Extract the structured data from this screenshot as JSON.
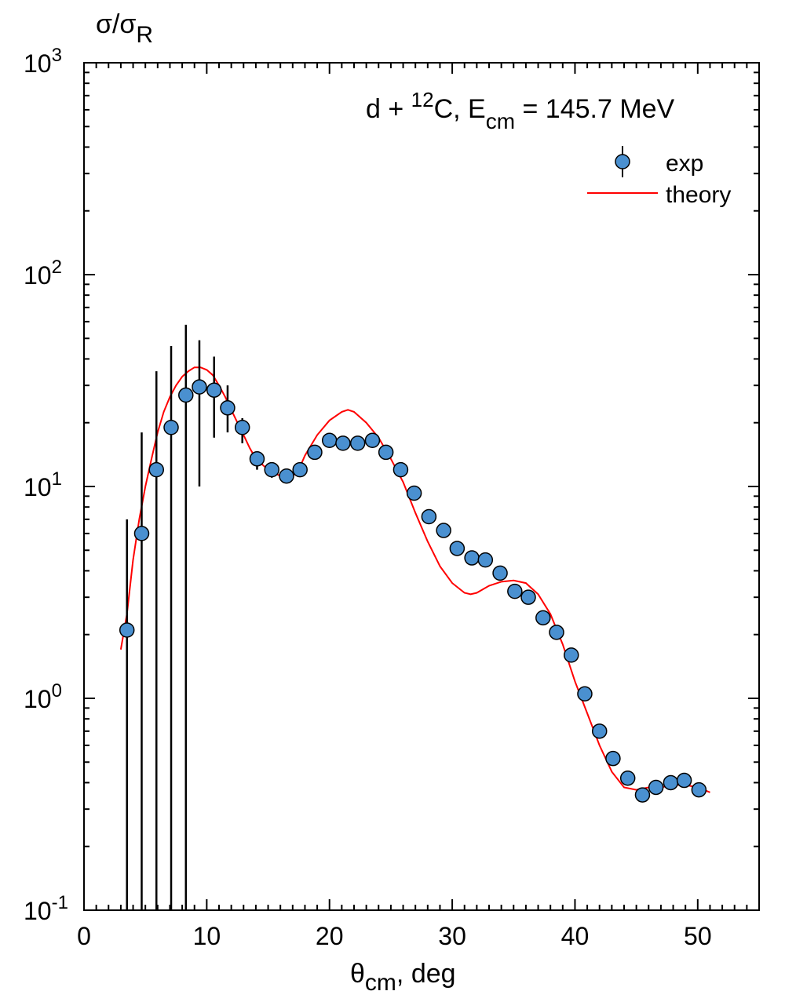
{
  "chart_data": {
    "type": "scatter",
    "title": {
      "reaction_prefix": "d + ",
      "mass_number": "12",
      "nucleus": "C, E",
      "energy_subscript": "cm",
      "energy_value": " = 145.7 MeV"
    },
    "ylabel": {
      "main": "σ/σ",
      "subscript": "R"
    },
    "xlabel": {
      "main": "θ",
      "subscript": "cm",
      "suffix": ", deg"
    },
    "xlim": [
      0,
      55
    ],
    "ylim": [
      0.1,
      1000
    ],
    "yscale": "log",
    "x_ticks": [
      "0",
      "10",
      "20",
      "30",
      "40",
      "50"
    ],
    "y_ticks": [
      {
        "base": "10",
        "exp": "-1"
      },
      {
        "base": "10",
        "exp": "0"
      },
      {
        "base": "10",
        "exp": "1"
      },
      {
        "base": "10",
        "exp": "2"
      },
      {
        "base": "10",
        "exp": "3"
      }
    ],
    "grid": false,
    "legend_position": "top-right",
    "legend": {
      "exp": "exp",
      "theory": "theory"
    },
    "colors": {
      "exp_fill": "#4a90d0",
      "exp_edge": "#000000",
      "theory": "#ff0000",
      "axis": "#000000"
    },
    "series": [
      {
        "name": "exp",
        "type": "scatter_with_errorbars",
        "x": [
          3.5,
          4.7,
          5.9,
          7.1,
          8.3,
          9.4,
          10.6,
          11.7,
          12.9,
          14.1,
          15.3,
          16.5,
          17.6,
          18.8,
          20.0,
          21.1,
          22.3,
          23.5,
          24.6,
          25.8,
          26.9,
          28.1,
          29.3,
          30.4,
          31.6,
          32.7,
          33.9,
          35.1,
          36.2,
          37.4,
          38.5,
          39.7,
          40.8,
          42.0,
          43.1,
          44.3,
          45.5,
          46.6,
          47.8,
          48.9,
          50.1
        ],
        "y": [
          2.1,
          6.0,
          12.0,
          19.0,
          27.0,
          29.5,
          28.5,
          23.5,
          19.0,
          13.5,
          12.0,
          11.2,
          12.0,
          14.5,
          16.5,
          16.0,
          16.0,
          16.5,
          14.5,
          12.0,
          9.3,
          7.2,
          6.2,
          5.1,
          4.6,
          4.5,
          3.9,
          3.2,
          3.0,
          2.4,
          2.05,
          1.6,
          1.05,
          0.7,
          0.52,
          0.42,
          0.35,
          0.38,
          0.4,
          0.41,
          0.37
        ],
        "yerr_low": [
          0.1,
          0.1,
          0.1,
          0.1,
          0.1,
          10.0,
          17.0,
          18.0,
          16.0,
          12.0,
          11.0,
          10.5,
          11.5,
          14.0,
          16.0,
          15.5,
          15.5,
          16.0,
          14.0,
          11.5,
          9.0,
          7.0,
          6.0,
          5.0,
          4.5,
          4.4,
          3.8,
          3.1,
          2.9,
          2.35,
          2.0,
          1.55,
          1.0,
          0.68,
          0.5,
          0.41,
          0.34,
          0.37,
          0.39,
          0.4,
          0.36
        ],
        "yerr_high": [
          7.0,
          18.0,
          35.0,
          46.0,
          58.0,
          49.0,
          41.0,
          30.0,
          21.0,
          14.0,
          12.5,
          11.7,
          12.5,
          15.0,
          17.0,
          16.5,
          16.5,
          17.0,
          15.0,
          12.5,
          9.6,
          7.4,
          6.4,
          5.2,
          4.7,
          4.6,
          4.0,
          3.3,
          3.1,
          2.45,
          2.1,
          1.65,
          1.1,
          0.72,
          0.54,
          0.43,
          0.36,
          0.39,
          0.41,
          0.42,
          0.38
        ]
      },
      {
        "name": "theory",
        "type": "line",
        "x": [
          3.0,
          3.5,
          4.0,
          4.5,
          5.0,
          5.5,
          6.0,
          6.5,
          7.0,
          7.5,
          8.0,
          8.5,
          9.0,
          9.5,
          10.0,
          10.5,
          11.0,
          11.5,
          12.0,
          12.5,
          13.0,
          13.5,
          14.0,
          15.0,
          16.0,
          16.5,
          17.0,
          17.5,
          18.0,
          19.0,
          20.0,
          21.0,
          21.5,
          22.0,
          23.0,
          24.0,
          25.0,
          26.0,
          27.0,
          28.0,
          29.0,
          30.0,
          31.0,
          31.5,
          32.0,
          33.0,
          34.0,
          35.0,
          36.0,
          37.0,
          38.0,
          39.0,
          40.0,
          41.0,
          42.0,
          43.0,
          44.0,
          45.0,
          46.0,
          47.0,
          48.0,
          49.0,
          50.0,
          51.0
        ],
        "y": [
          1.7,
          2.5,
          4.5,
          7.0,
          10.0,
          13.5,
          18.0,
          22.5,
          26.5,
          30.0,
          33.0,
          35.0,
          36.5,
          36.5,
          35.5,
          33.5,
          30.0,
          26.5,
          23.0,
          20.0,
          17.5,
          15.2,
          13.5,
          12.0,
          11.2,
          11.0,
          11.2,
          12.0,
          14.0,
          17.5,
          20.5,
          22.5,
          23.0,
          22.5,
          20.0,
          17.0,
          13.5,
          10.5,
          7.5,
          5.5,
          4.2,
          3.5,
          3.15,
          3.1,
          3.15,
          3.4,
          3.55,
          3.6,
          3.5,
          3.1,
          2.5,
          1.8,
          1.2,
          0.85,
          0.6,
          0.45,
          0.38,
          0.37,
          0.38,
          0.38,
          0.39,
          0.39,
          0.38,
          0.36
        ]
      }
    ]
  }
}
